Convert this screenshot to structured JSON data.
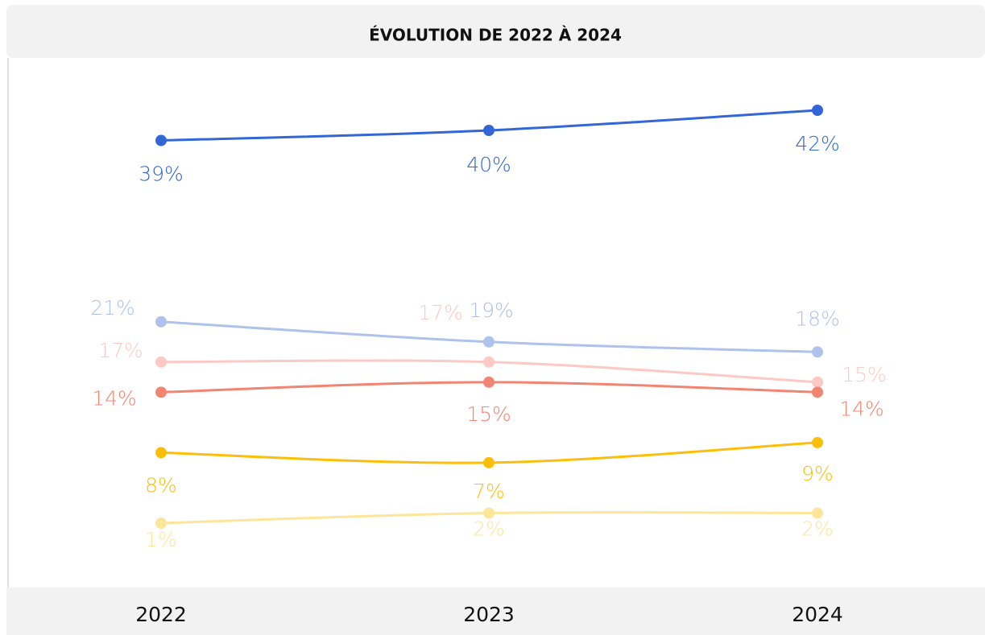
{
  "chart_data": {
    "type": "line",
    "title": "ÉVOLUTION DE 2022 À 2024",
    "categories": [
      "2022",
      "2023",
      "2024"
    ],
    "series": [
      {
        "color": "#3366d6",
        "values": [
          39,
          40,
          42
        ],
        "value_labels": [
          "39%",
          "40%",
          "42%"
        ]
      },
      {
        "color": "#aec2ec",
        "values": [
          21,
          19,
          18
        ],
        "value_labels": [
          "21%",
          "19%",
          "18%"
        ]
      },
      {
        "color": "#fcc9c5",
        "values": [
          17,
          17,
          15
        ],
        "value_labels": [
          "17%",
          "17%",
          "15%"
        ]
      },
      {
        "color": "#f28472",
        "values": [
          14,
          15,
          14
        ],
        "value_labels": [
          "14%",
          "15%",
          "14%"
        ]
      },
      {
        "color": "#fbbf0b",
        "values": [
          8,
          7,
          9
        ],
        "value_labels": [
          "8%",
          "7%",
          "9%"
        ]
      },
      {
        "color": "#fde59a",
        "values": [
          1,
          2,
          2
        ],
        "value_labels": [
          "1%",
          "2%",
          "2%"
        ]
      }
    ]
  }
}
